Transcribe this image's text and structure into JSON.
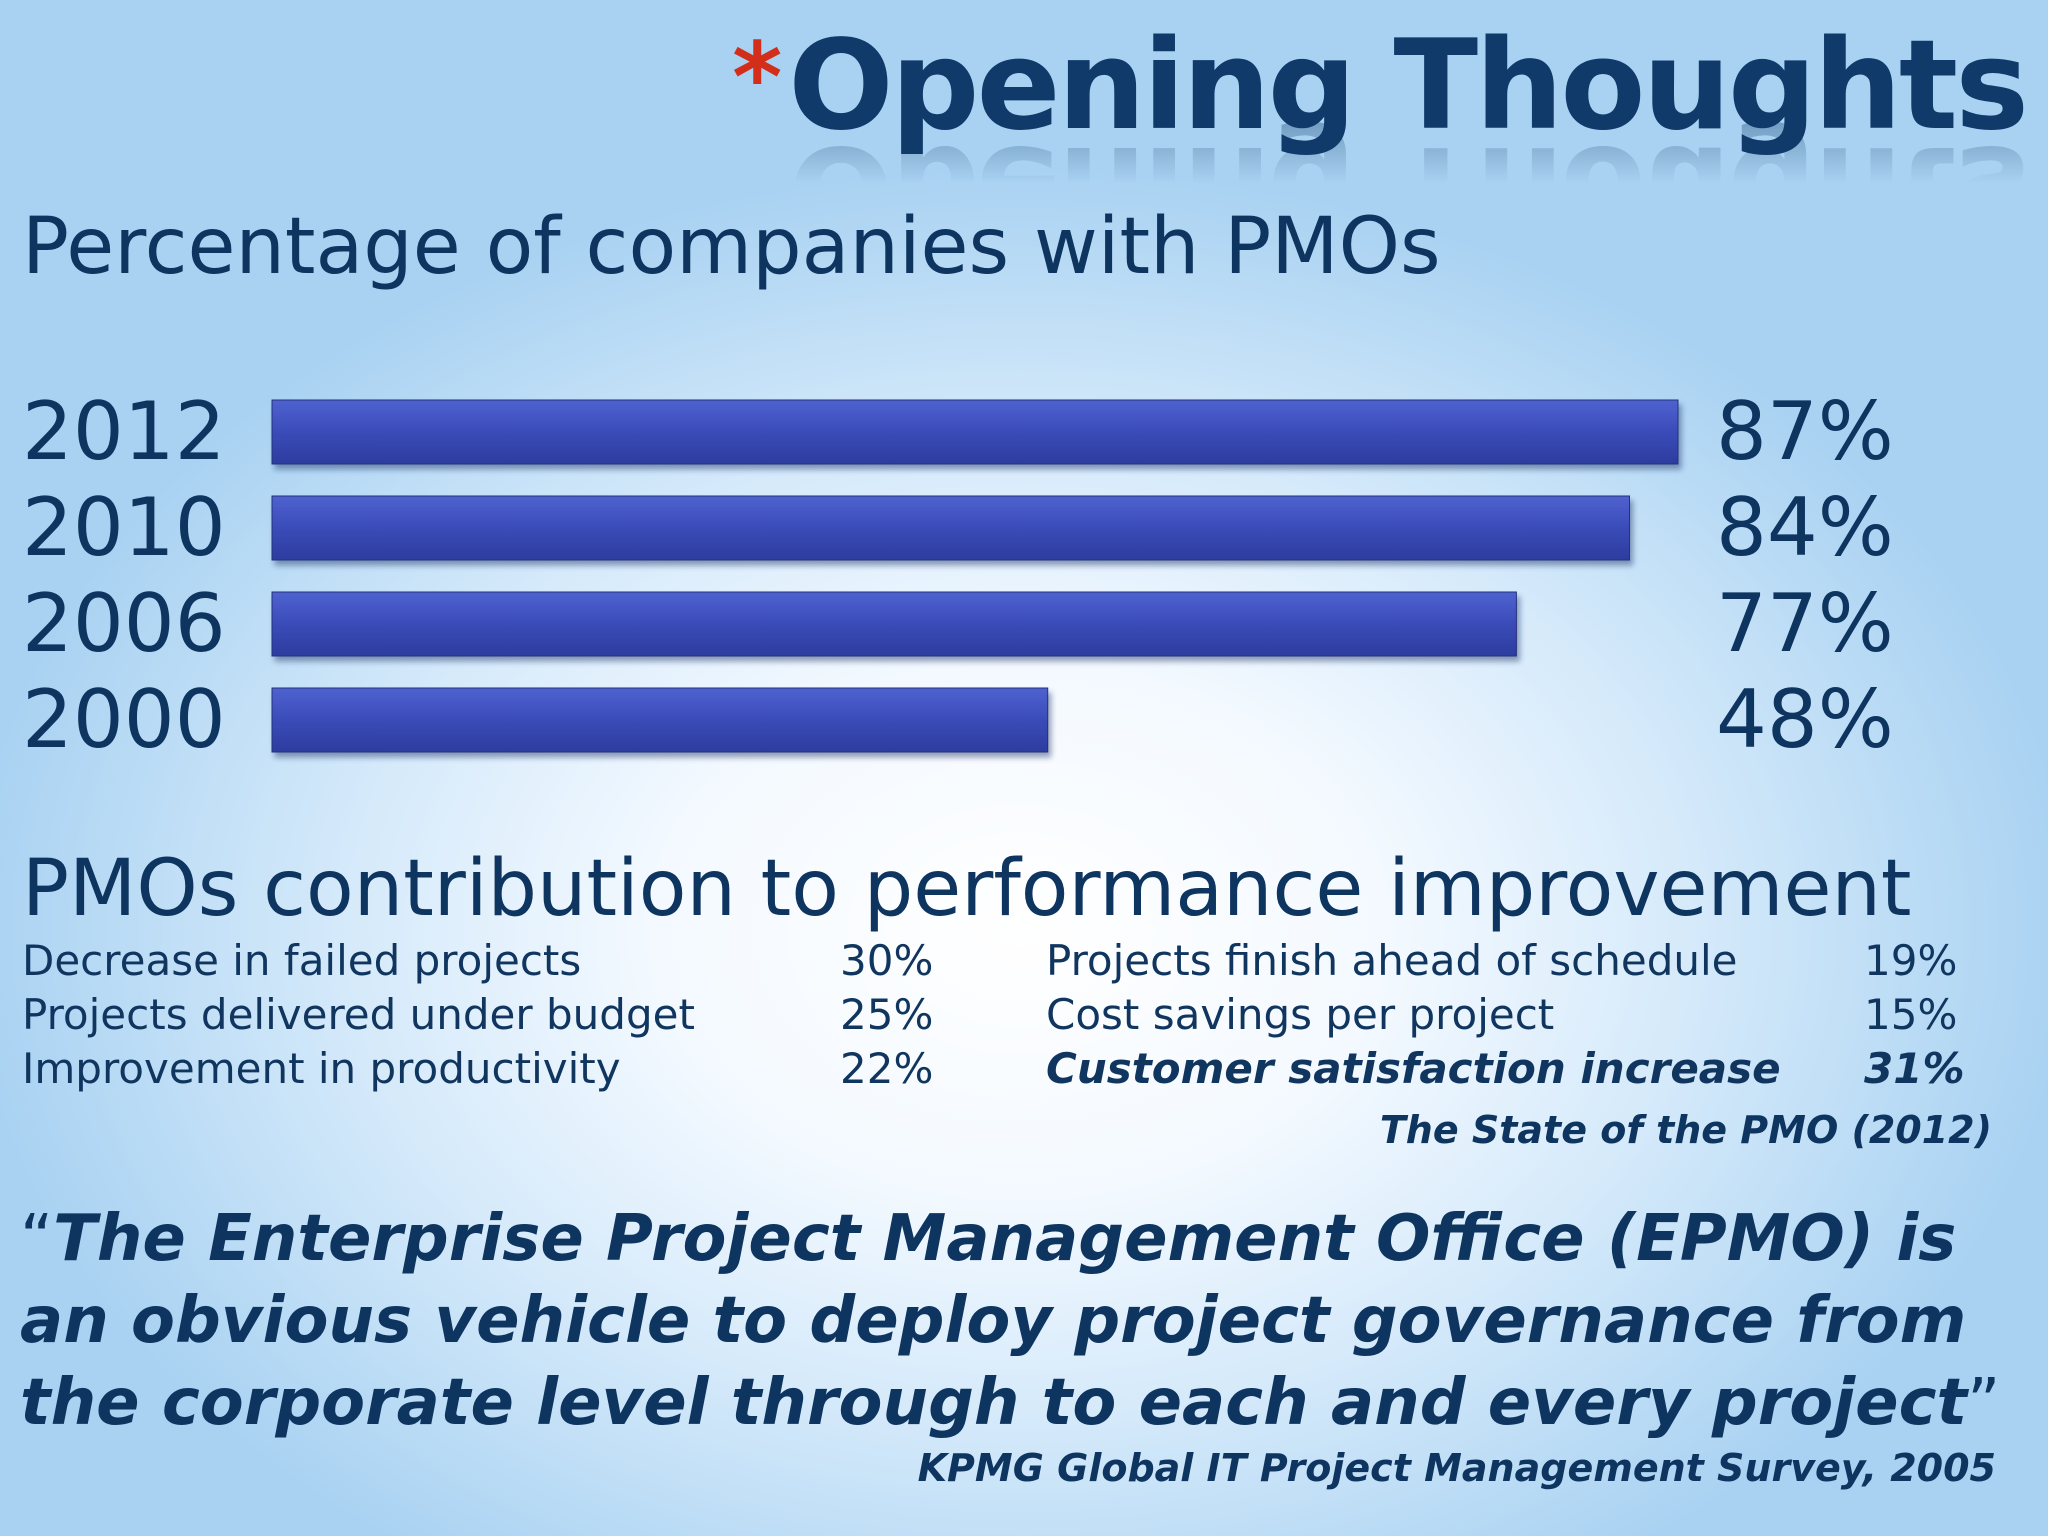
{
  "slide": {
    "star": "*",
    "title": "Opening Thoughts"
  },
  "chart_data": {
    "type": "bar",
    "orientation": "horizontal",
    "title": "Percentage of companies with PMOs",
    "categories": [
      "2012",
      "2010",
      "2006",
      "2000"
    ],
    "values": [
      87,
      84,
      77,
      48
    ],
    "value_labels": [
      "87%",
      "84%",
      "77%",
      "48%"
    ],
    "xlabel": "",
    "ylabel": "",
    "bar_color": "#3547b2",
    "grid": false,
    "legend": "none"
  },
  "performance": {
    "heading": "PMOs contribution to performance improvement",
    "left": [
      {
        "label": "Decrease in failed projects",
        "value": "30%"
      },
      {
        "label": "Projects delivered under budget",
        "value": "25%"
      },
      {
        "label": "Improvement in productivity",
        "value": "22%"
      }
    ],
    "right": [
      {
        "label": "Projects finish ahead of schedule",
        "value": "19%"
      },
      {
        "label": "Cost savings per project",
        "value": "15%"
      },
      {
        "label": "Customer satisfaction increase",
        "value": "31%"
      }
    ],
    "source": "The State of the PMO (2012)"
  },
  "quote": {
    "open_mark": "“",
    "text": "The Enterprise Project Management Office (EPMO) is an obvious vehicle to deploy project governance from the corporate level through to each and every project",
    "close_mark": "”",
    "source": "KPMG Global IT Project Management Survey, 2005"
  },
  "colors": {
    "accent_star": "#d32e1a",
    "text": "#0e3560",
    "bar": "#3547b2"
  }
}
